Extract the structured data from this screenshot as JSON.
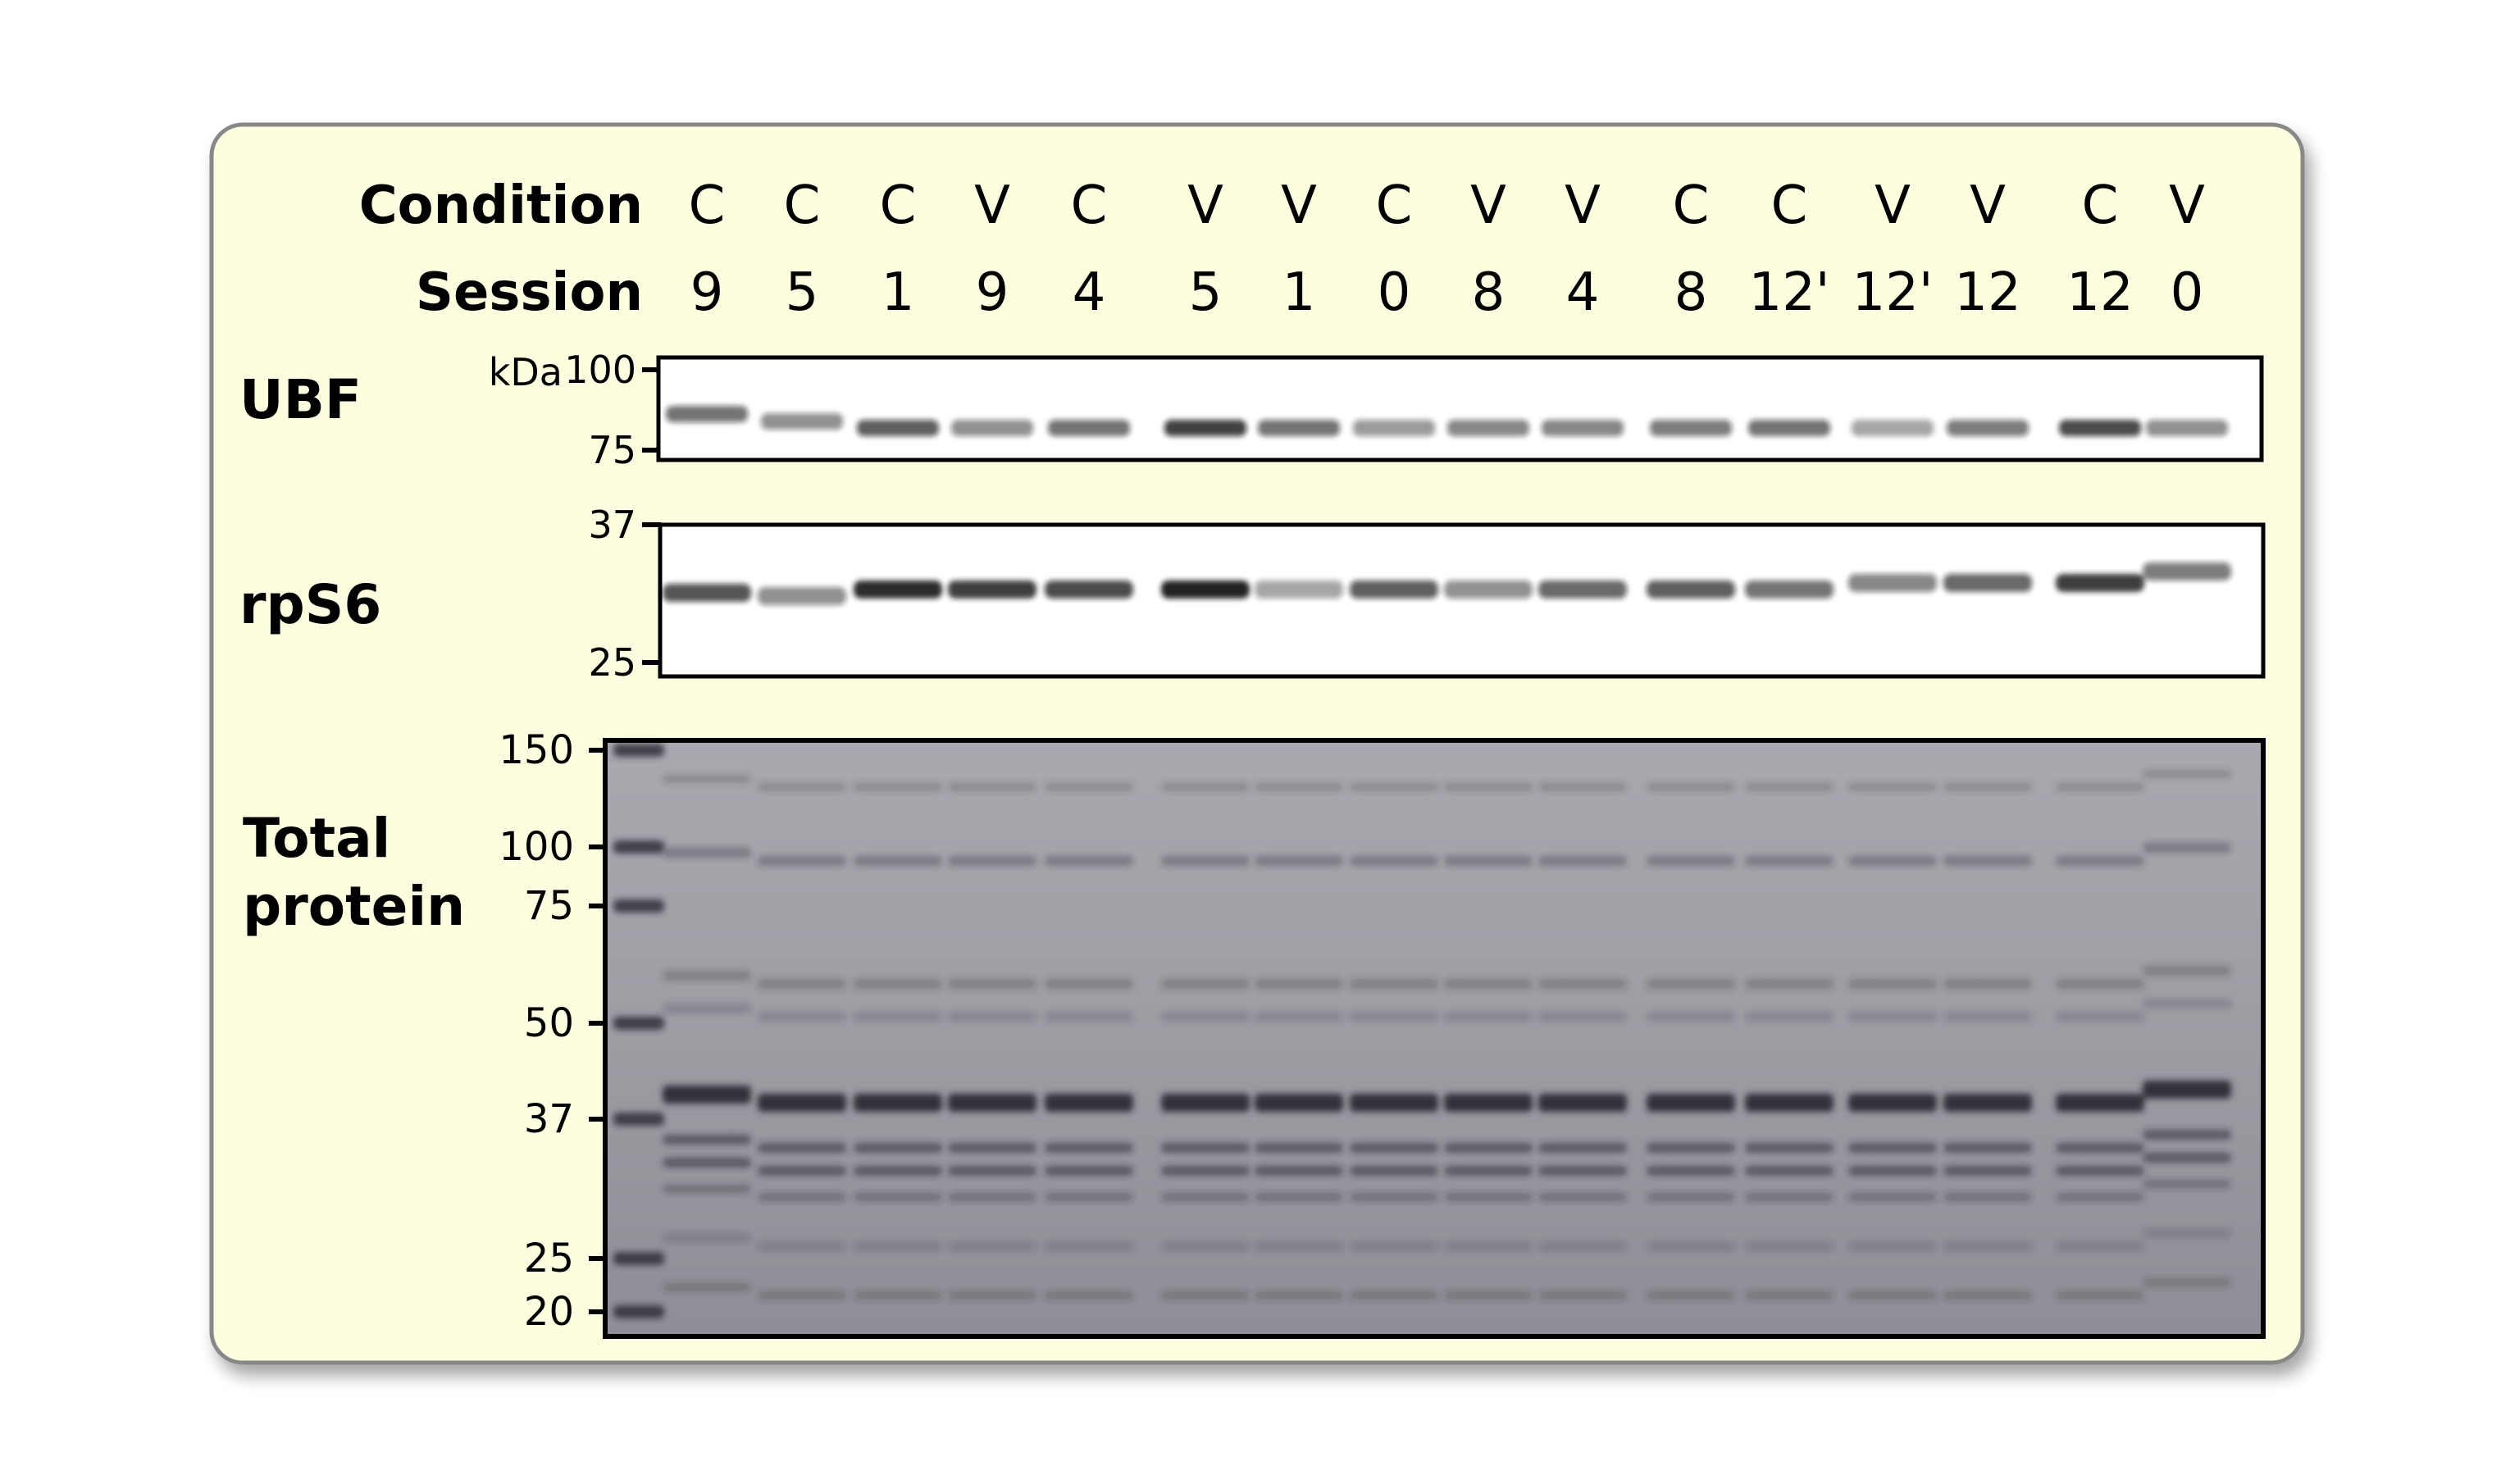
{
  "header": {
    "condition_label": "Condition",
    "session_label": "Session"
  },
  "lanes": [
    {
      "condition": "C",
      "session": "9",
      "ubf": 0.55,
      "rps6": 0.7
    },
    {
      "condition": "C",
      "session": "5",
      "ubf": 0.4,
      "rps6": 0.4
    },
    {
      "condition": "C",
      "session": "1",
      "ubf": 0.65,
      "rps6": 0.95
    },
    {
      "condition": "V",
      "session": "9",
      "ubf": 0.4,
      "rps6": 0.85
    },
    {
      "condition": "C",
      "session": "4",
      "ubf": 0.55,
      "rps6": 0.75
    },
    {
      "condition": "V",
      "session": "5",
      "ubf": 0.8,
      "rps6": 1.0
    },
    {
      "condition": "V",
      "session": "1",
      "ubf": 0.55,
      "rps6": 0.3
    },
    {
      "condition": "C",
      "session": "0",
      "ubf": 0.35,
      "rps6": 0.65
    },
    {
      "condition": "V",
      "session": "8",
      "ubf": 0.45,
      "rps6": 0.4
    },
    {
      "condition": "V",
      "session": "4",
      "ubf": 0.45,
      "rps6": 0.6
    },
    {
      "condition": "C",
      "session": "8",
      "ubf": 0.5,
      "rps6": 0.65
    },
    {
      "condition": "C",
      "session": "12'",
      "ubf": 0.55,
      "rps6": 0.55
    },
    {
      "condition": "V",
      "session": "12'",
      "ubf": 0.3,
      "rps6": 0.45
    },
    {
      "condition": "V",
      "session": "12",
      "ubf": 0.5,
      "rps6": 0.6
    },
    {
      "condition": "C",
      "session": "12",
      "ubf": 0.75,
      "rps6": 0.85
    },
    {
      "condition": "V",
      "session": "0",
      "ubf": 0.4,
      "rps6": 0.5
    }
  ],
  "blots": {
    "ubf": {
      "label": "UBF",
      "unit": "kDa",
      "markers": [
        "100",
        "75"
      ]
    },
    "rps6": {
      "label": "rpS6",
      "markers": [
        "37",
        "25"
      ]
    },
    "total": {
      "label_line1": "Total",
      "label_line2": "protein",
      "markers": [
        "150",
        "100",
        "75",
        "50",
        "37",
        "25",
        "20"
      ]
    }
  },
  "colors": {
    "panel_fill": "#fdfddf",
    "panel_border": "#888888",
    "blot_bg": "#ffffff",
    "band": "#141414",
    "gel_bg": "#a0a0a6",
    "gel_band": "#2a2a34"
  }
}
